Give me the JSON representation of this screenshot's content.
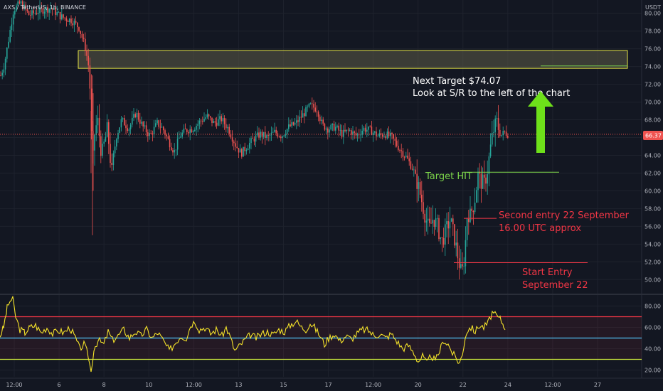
{
  "header": {
    "symbol_line": "AXS / TetherUS, 1h, BINANCE",
    "currency": "USDT"
  },
  "colors": {
    "background": "#131722",
    "grid": "#1e222d",
    "candle_up": "#26a69a",
    "candle_down": "#ef5350",
    "zone_fill": "#5d5b47",
    "zone_border": "#e4e445",
    "annotation_white": "#ffffff",
    "annotation_green": "#7cd44a",
    "annotation_red": "#f23645",
    "arrow_green": "#6ee01a",
    "rsi_line": "#f5e32a",
    "rsi_upper": "#f23645",
    "rsi_mid": "#4fc3f7",
    "rsi_lower": "#c6e03b",
    "last_price_bg": "#ef5350"
  },
  "annotations": {
    "next_target_line1": "Next Target $74.07",
    "next_target_line2": "Look at S/R to the left of the chart",
    "target_hit": "Target HIT",
    "second_entry_line1": "Second entry 22 September",
    "second_entry_line2": "16.00 UTC approx",
    "start_entry_line1": "Start Entry",
    "start_entry_line2": "September 22"
  },
  "last_price": "66.37",
  "chart_data": {
    "type": "candlestick",
    "symbol": "AXS / TetherUS",
    "interval": "1h",
    "exchange": "BINANCE",
    "price_axis": {
      "range": [
        48.5,
        81.5
      ],
      "ticks": [
        "80.00",
        "78.00",
        "76.00",
        "74.00",
        "72.00",
        "70.00",
        "68.00",
        "66.00",
        "64.00",
        "62.00",
        "60.00",
        "58.00",
        "56.00",
        "54.00",
        "52.00",
        "50.00"
      ]
    },
    "time_axis": {
      "ticks": [
        "12:00",
        "6",
        "8",
        "10",
        "12:00",
        "13",
        "15",
        "17",
        "12:00",
        "20",
        "22",
        "24",
        "12:00",
        "27"
      ]
    },
    "price_path": [
      [
        0,
        73
      ],
      [
        5,
        74.2
      ],
      [
        12,
        77.5
      ],
      [
        18,
        80.4
      ],
      [
        28,
        81.2
      ],
      [
        40,
        79.8
      ],
      [
        55,
        80.3
      ],
      [
        70,
        80.6
      ],
      [
        85,
        79.6
      ],
      [
        100,
        79.2
      ],
      [
        110,
        78.4
      ],
      [
        118,
        76.4
      ],
      [
        123,
        74.4
      ],
      [
        126,
        71
      ],
      [
        129,
        62
      ],
      [
        131,
        66
      ],
      [
        136,
        68
      ],
      [
        142,
        64
      ],
      [
        150,
        67
      ],
      [
        156,
        62
      ],
      [
        162,
        66
      ],
      [
        170,
        68
      ],
      [
        180,
        67
      ],
      [
        190,
        68.8
      ],
      [
        200,
        67.2
      ],
      [
        210,
        66.2
      ],
      [
        220,
        67.6
      ],
      [
        228,
        67
      ],
      [
        236,
        65.6
      ],
      [
        244,
        64.4
      ],
      [
        252,
        66.2
      ],
      [
        260,
        66.8
      ],
      [
        270,
        67
      ],
      [
        280,
        67.8
      ],
      [
        290,
        68.4
      ],
      [
        300,
        67.6
      ],
      [
        310,
        68.1
      ],
      [
        320,
        67
      ],
      [
        330,
        65.2
      ],
      [
        338,
        64.2
      ],
      [
        346,
        65
      ],
      [
        355,
        65.8
      ],
      [
        365,
        66.4
      ],
      [
        375,
        66
      ],
      [
        385,
        66.6
      ],
      [
        395,
        66.2
      ],
      [
        405,
        67.2
      ],
      [
        415,
        67.6
      ],
      [
        425,
        68.6
      ],
      [
        435,
        69.6
      ],
      [
        445,
        69.2
      ],
      [
        452,
        67.4
      ],
      [
        460,
        67
      ],
      [
        470,
        67.2
      ],
      [
        480,
        66.4
      ],
      [
        490,
        66.8
      ],
      [
        500,
        66.2
      ],
      [
        510,
        67
      ],
      [
        520,
        66.8
      ],
      [
        530,
        66.2
      ],
      [
        540,
        66.4
      ],
      [
        550,
        66
      ],
      [
        560,
        64.8
      ],
      [
        570,
        63.8
      ],
      [
        580,
        62.4
      ],
      [
        588,
        60.2
      ],
      [
        596,
        57.4
      ],
      [
        602,
        55.6
      ],
      [
        608,
        57
      ],
      [
        614,
        56
      ],
      [
        620,
        54.2
      ],
      [
        626,
        55.6
      ],
      [
        632,
        56.8
      ],
      [
        638,
        54.6
      ],
      [
        644,
        52
      ],
      [
        648,
        50.5
      ],
      [
        652,
        52.6
      ],
      [
        656,
        57.6
      ],
      [
        660,
        57.2
      ],
      [
        666,
        58.8
      ],
      [
        671,
        61.8
      ],
      [
        675,
        61
      ],
      [
        680,
        60.8
      ],
      [
        684,
        62.2
      ],
      [
        688,
        64.6
      ],
      [
        692,
        66.6
      ],
      [
        697,
        67.8
      ],
      [
        703,
        66.2
      ],
      [
        708,
        66.6
      ],
      [
        713,
        66.4
      ]
    ],
    "resistance_zone": {
      "from": 73.8,
      "to": 75.8
    },
    "levels": [
      {
        "label": "Next Target $74.07",
        "price": 74.07
      },
      {
        "label": "Target HIT",
        "price": 62.1
      },
      {
        "label": "Second entry",
        "price": 56.9
      },
      {
        "label": "Start Entry",
        "price": 51.9
      }
    ],
    "rsi": {
      "range": [
        15,
        87
      ],
      "ticks": [
        "80.00",
        "60.00",
        "40.00",
        "20.00"
      ],
      "bands": [
        70,
        50,
        30
      ],
      "path": [
        [
          0,
          52
        ],
        [
          5,
          60
        ],
        [
          10,
          78
        ],
        [
          14,
          85
        ],
        [
          18,
          86
        ],
        [
          22,
          70
        ],
        [
          28,
          58
        ],
        [
          35,
          55
        ],
        [
          42,
          60
        ],
        [
          50,
          62
        ],
        [
          58,
          55
        ],
        [
          66,
          60
        ],
        [
          74,
          54
        ],
        [
          82,
          57
        ],
        [
          90,
          55
        ],
        [
          98,
          60
        ],
        [
          106,
          50
        ],
        [
          112,
          40
        ],
        [
          118,
          44
        ],
        [
          124,
          34
        ],
        [
          128,
          18
        ],
        [
          132,
          40
        ],
        [
          138,
          48
        ],
        [
          146,
          44
        ],
        [
          152,
          56
        ],
        [
          158,
          48
        ],
        [
          166,
          52
        ],
        [
          174,
          58
        ],
        [
          182,
          50
        ],
        [
          190,
          56
        ],
        [
          198,
          52
        ],
        [
          206,
          58
        ],
        [
          214,
          50
        ],
        [
          222,
          55
        ],
        [
          230,
          47
        ],
        [
          238,
          38
        ],
        [
          246,
          45
        ],
        [
          254,
          52
        ],
        [
          262,
          50
        ],
        [
          268,
          62
        ],
        [
          274,
          66
        ],
        [
          280,
          58
        ],
        [
          288,
          60
        ],
        [
          296,
          54
        ],
        [
          304,
          58
        ],
        [
          312,
          52
        ],
        [
          318,
          60
        ],
        [
          324,
          50
        ],
        [
          330,
          38
        ],
        [
          336,
          42
        ],
        [
          344,
          48
        ],
        [
          352,
          53
        ],
        [
          360,
          50
        ],
        [
          368,
          54
        ],
        [
          376,
          56
        ],
        [
          384,
          53
        ],
        [
          392,
          58
        ],
        [
          400,
          56
        ],
        [
          408,
          62
        ],
        [
          416,
          66
        ],
        [
          424,
          60
        ],
        [
          430,
          58
        ],
        [
          436,
          64
        ],
        [
          442,
          60
        ],
        [
          450,
          52
        ],
        [
          456,
          44
        ],
        [
          462,
          50
        ],
        [
          470,
          54
        ],
        [
          478,
          47
        ],
        [
          486,
          52
        ],
        [
          494,
          49
        ],
        [
          502,
          54
        ],
        [
          510,
          58
        ],
        [
          518,
          57
        ],
        [
          526,
          52
        ],
        [
          534,
          54
        ],
        [
          542,
          50
        ],
        [
          550,
          54
        ],
        [
          558,
          47
        ],
        [
          566,
          40
        ],
        [
          574,
          43
        ],
        [
          582,
          36
        ],
        [
          588,
          28
        ],
        [
          594,
          33
        ],
        [
          600,
          26
        ],
        [
          606,
          34
        ],
        [
          612,
          28
        ],
        [
          618,
          38
        ],
        [
          624,
          48
        ],
        [
          630,
          44
        ],
        [
          636,
          36
        ],
        [
          642,
          30
        ],
        [
          646,
          27
        ],
        [
          650,
          34
        ],
        [
          654,
          52
        ],
        [
          658,
          58
        ],
        [
          662,
          60
        ],
        [
          668,
          56
        ],
        [
          674,
          62
        ],
        [
          680,
          60
        ],
        [
          686,
          64
        ],
        [
          692,
          74
        ],
        [
          698,
          70
        ],
        [
          703,
          68
        ],
        [
          708,
          62
        ],
        [
          712,
          60
        ]
      ]
    }
  }
}
